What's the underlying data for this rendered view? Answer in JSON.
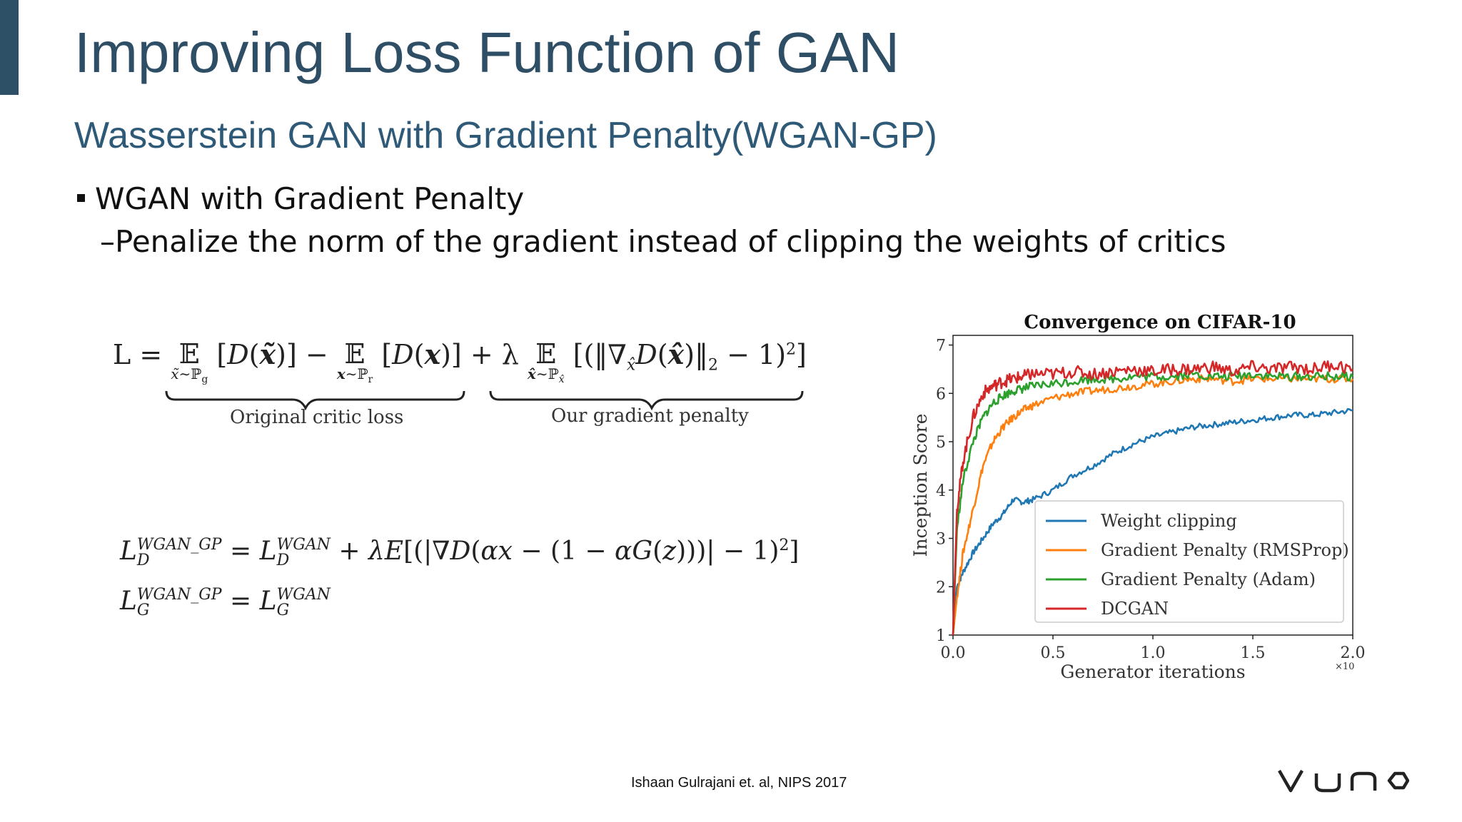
{
  "slide": {
    "title": "Improving Loss Function of GAN",
    "subtitle": "Wasserstein GAN with Gradient Penalty(WGAN-GP)",
    "bullet": "WGAN with Gradient Penalty",
    "sub_bullet": "–Penalize the norm of the gradient instead of clipping the weights of critics",
    "citation": "Ishaan Gulrajani et. al, NIPS 2017",
    "logo_text": "VUNO",
    "accent_color": "#2e5066"
  },
  "equations": {
    "main_lhs": "L =",
    "original_label": "Original critic loss",
    "penalty_label": "Our gradient penalty",
    "d_loss": "L_D^WGAN_GP = L_D^WGAN + λE[(|∇D(αx − (1 − αG(z)))| − 1)²]",
    "g_loss": "L_G^WGAN_GP = L_G^WGAN"
  },
  "chart_data": {
    "type": "line",
    "title": "Convergence on CIFAR-10",
    "xlabel": "Generator iterations",
    "ylabel": "Inception Score",
    "x_multiplier": "×10",
    "xlim": [
      0,
      2.0
    ],
    "ylim": [
      1,
      7.2
    ],
    "xticks": [
      "0.0",
      "0.5",
      "1.0",
      "1.5",
      "2.0"
    ],
    "yticks": [
      "1",
      "2",
      "3",
      "4",
      "5",
      "6",
      "7"
    ],
    "legend_position": "bottom-right",
    "grid": false,
    "x": [
      0,
      0.02,
      0.05,
      0.1,
      0.15,
      0.2,
      0.25,
      0.3,
      0.35,
      0.4,
      0.5,
      0.6,
      0.7,
      0.8,
      0.9,
      1.0,
      1.1,
      1.2,
      1.3,
      1.4,
      1.5,
      1.6,
      1.7,
      1.8,
      1.9,
      2.0
    ],
    "series": [
      {
        "name": "Weight clipping",
        "color": "#1f77b4",
        "values": [
          1.0,
          2.0,
          2.3,
          2.7,
          3.0,
          3.3,
          3.5,
          3.8,
          3.75,
          3.8,
          4.0,
          4.3,
          4.5,
          4.75,
          4.95,
          5.1,
          5.2,
          5.3,
          5.35,
          5.4,
          5.45,
          5.5,
          5.55,
          5.55,
          5.6,
          5.65
        ]
      },
      {
        "name": "Gradient Penalty (RMSProp)",
        "color": "#ff7f0e",
        "values": [
          1.0,
          1.8,
          2.7,
          3.6,
          4.5,
          5.0,
          5.3,
          5.5,
          5.65,
          5.75,
          5.9,
          6.0,
          6.05,
          6.1,
          6.15,
          6.2,
          6.25,
          6.3,
          6.3,
          6.25,
          6.3,
          6.3,
          6.3,
          6.3,
          6.3,
          6.3
        ]
      },
      {
        "name": "Gradient Penalty (Adam)",
        "color": "#2ca02c",
        "values": [
          1.0,
          3.2,
          4.2,
          5.0,
          5.5,
          5.8,
          5.95,
          6.05,
          6.1,
          6.15,
          6.2,
          6.25,
          6.3,
          6.3,
          6.35,
          6.35,
          6.35,
          6.4,
          6.35,
          6.35,
          6.4,
          6.35,
          6.35,
          6.35,
          6.35,
          6.35
        ]
      },
      {
        "name": "DCGAN",
        "color": "#d62728",
        "values": [
          1.0,
          3.6,
          4.6,
          5.5,
          6.0,
          6.15,
          6.25,
          6.3,
          6.35,
          6.4,
          6.4,
          6.45,
          6.4,
          6.45,
          6.5,
          6.45,
          6.5,
          6.5,
          6.55,
          6.45,
          6.55,
          6.5,
          6.55,
          6.5,
          6.6,
          6.5
        ]
      }
    ]
  }
}
